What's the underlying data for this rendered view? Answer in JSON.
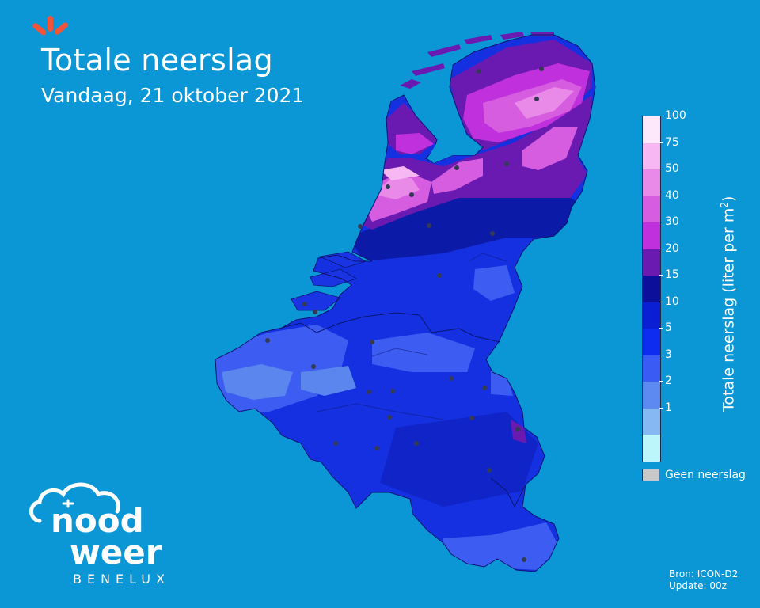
{
  "header": {
    "title": "Totale neerslag",
    "subtitle": "Vandaag, 21 oktober 2021"
  },
  "legend": {
    "title_main": "Totale neerslag (liter per m",
    "title_sup": "2",
    "title_end": ")",
    "ticks": [
      "100",
      "75",
      "50",
      "40",
      "30",
      "20",
      "15",
      "10",
      "5",
      "3",
      "2",
      "1"
    ],
    "colors": [
      "#fde8fb",
      "#f6b7f2",
      "#e98ae8",
      "#d65ce0",
      "#c030dc",
      "#6a1ab0",
      "#0c0f9a",
      "#0a1ed4",
      "#0e2cf0",
      "#3a5cf4",
      "#5c8af0",
      "#86b8f4",
      "#bdf6fa"
    ],
    "no_precip_label": "Geen neerslag",
    "no_precip_color": "#c8c8c8"
  },
  "footer": {
    "source": "Bron: ICON-D2",
    "update": "Update: 00z"
  },
  "logo": {
    "line1": "nood",
    "line2": "weer",
    "tagline": "BENELUX"
  },
  "colors": {
    "background": "#0b96d6",
    "accent": "#f0553a"
  }
}
